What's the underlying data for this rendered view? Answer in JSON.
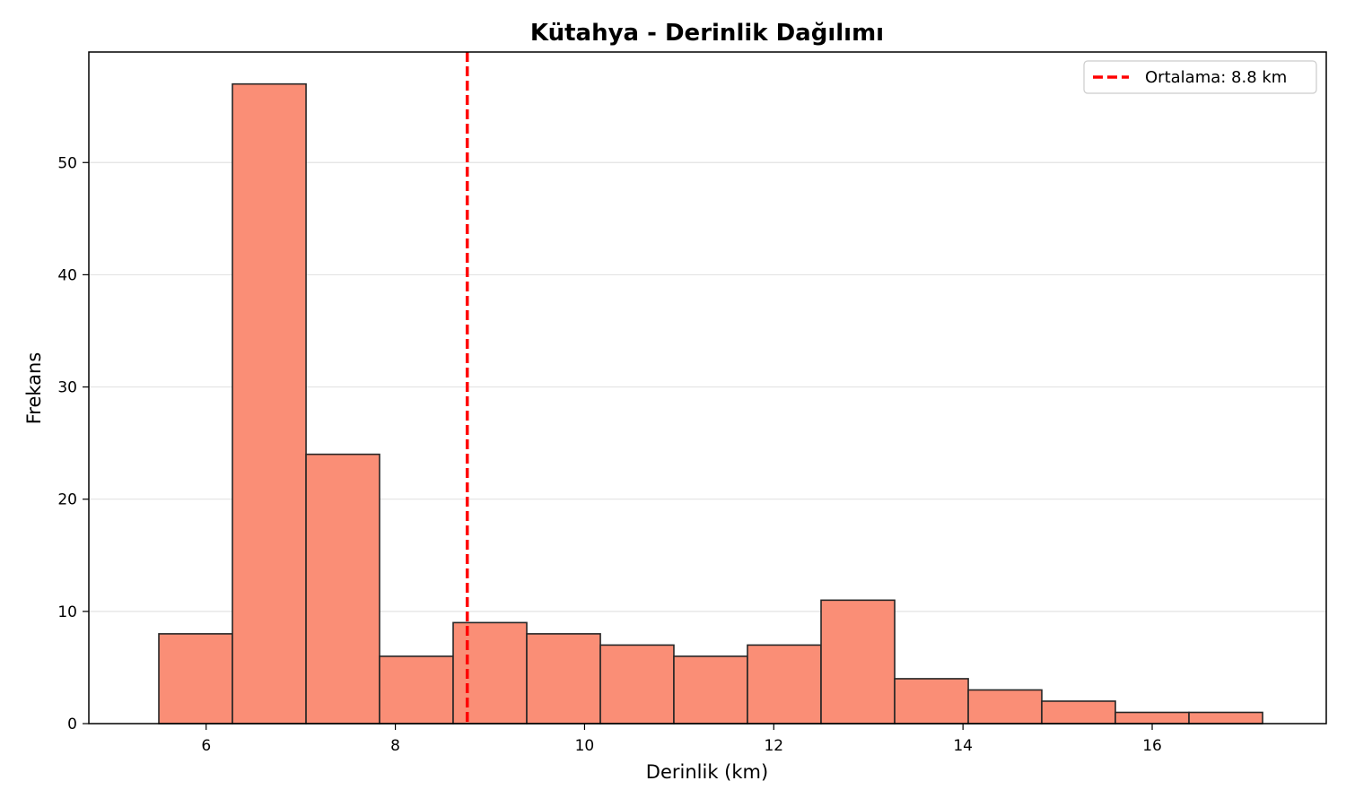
{
  "chart_data": {
    "type": "bar",
    "title": "Kütahya - Derinlik Dağılımı",
    "xlabel": "Derinlik (km)",
    "ylabel": "Frekans",
    "xlim": [
      4.76,
      17.84
    ],
    "ylim": [
      0,
      59.85
    ],
    "xticks": [
      6,
      8,
      10,
      12,
      14,
      16
    ],
    "yticks": [
      0,
      10,
      20,
      30,
      40,
      50
    ],
    "bin_edges": [
      5.5,
      6.278,
      7.056,
      7.833,
      8.611,
      9.389,
      10.167,
      10.944,
      11.722,
      12.5,
      13.278,
      14.056,
      14.833,
      15.611,
      16.389,
      17.167
    ],
    "values": [
      8,
      57,
      24,
      6,
      9,
      8,
      7,
      6,
      7,
      11,
      4,
      3,
      2,
      1,
      1
    ],
    "bar_color": "#fa8e76",
    "bar_edge_color": "#262626",
    "grid": "horizontal",
    "mean_line": {
      "x": 8.76,
      "color": "#ff0000",
      "style": "dashed",
      "label": "Ortalama: 8.8 km"
    },
    "legend_position": "top-right"
  }
}
